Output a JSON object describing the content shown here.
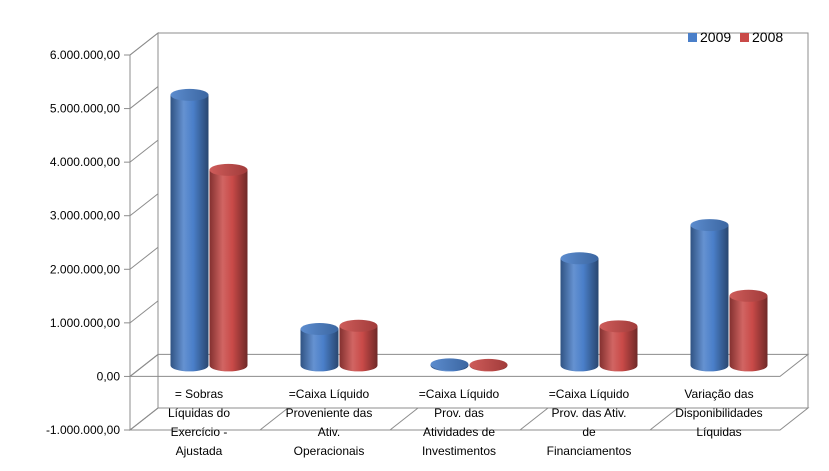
{
  "chart_data": {
    "type": "bar",
    "title": "",
    "xlabel": "",
    "ylabel": "",
    "categories": [
      [
        "= Sobras",
        "Líquidas do",
        "Exercício -",
        "Ajustada"
      ],
      [
        "=Caixa Líquido",
        "Proveniente das",
        "Ativ.",
        "Operacionais"
      ],
      [
        "=Caixa Líquido",
        "Prov. das",
        "Atividades de",
        "Investimentos"
      ],
      [
        "=Caixa Líquido",
        "Prov. das Ativ.",
        "de",
        "Financiamentos"
      ],
      [
        "Variação das",
        "Disponibilidades",
        "Líquidas"
      ]
    ],
    "series": [
      {
        "name": "2009",
        "color": "#4A7FC9",
        "values": [
          5050000,
          680000,
          20000,
          2000000,
          2620000
        ]
      },
      {
        "name": "2008",
        "color": "#C94A48",
        "values": [
          3650000,
          740000,
          10000,
          730000,
          1300000
        ]
      }
    ],
    "ylim": [
      -1000000,
      6000000
    ],
    "yticks": [
      {
        "value": -1000000,
        "label": "-1.000.000,00"
      },
      {
        "value": 0,
        "label": "0,00"
      },
      {
        "value": 1000000,
        "label": "1.000.000,00"
      },
      {
        "value": 2000000,
        "label": "2.000.000,00"
      },
      {
        "value": 3000000,
        "label": "3.000.000,00"
      },
      {
        "value": 4000000,
        "label": "4.000.000,00"
      },
      {
        "value": 5000000,
        "label": "5.000.000,00"
      },
      {
        "value": 6000000,
        "label": "6.000.000,00"
      }
    ],
    "grid": false,
    "legend_position": "top-right",
    "style": "3d-cylinder"
  }
}
